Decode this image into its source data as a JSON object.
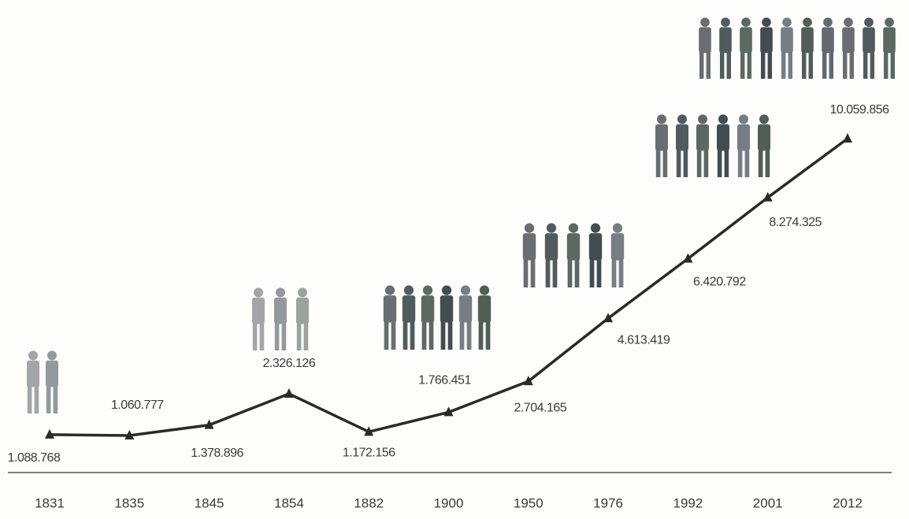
{
  "chart_data": {
    "type": "line",
    "categories": [
      "1831",
      "1835",
      "1845",
      "1854",
      "1882",
      "1900",
      "1950",
      "1976",
      "1992",
      "2001",
      "2012"
    ],
    "values": [
      1088768,
      1060777,
      1378896,
      2326126,
      1172156,
      1766451,
      2704165,
      4613419,
      6420792,
      8274325,
      10059856
    ],
    "value_labels": [
      "1.088.768",
      "1.060.777",
      "1.378.896",
      "2.326.126",
      "1.172.156",
      "1.766.451",
      "2.704.165",
      "4.613.419",
      "6.420.792",
      "8.274.325",
      "10.059.856"
    ],
    "color": "#2a2a2a"
  }
}
